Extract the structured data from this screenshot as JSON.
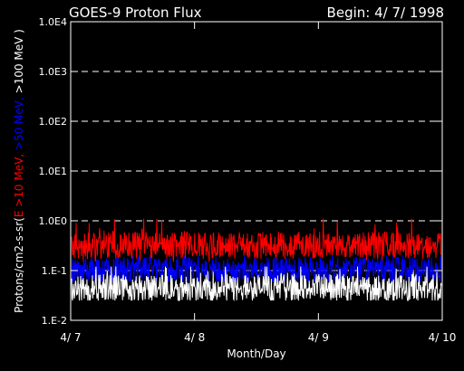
{
  "header": {
    "title": "GOES-9 Proton Flux",
    "begin": "Begin: 4/ 7/ 1998"
  },
  "chart_data": {
    "type": "line",
    "title": "GOES-9 Proton Flux",
    "xlabel": "Month/Day",
    "ylabel_parts": [
      {
        "text": "Protons/cm2-s-sr(",
        "color": "#ffffff"
      },
      {
        "text": "E >10 MeV,",
        "color": "#ff0000"
      },
      {
        "text": " >50 MeV,",
        "color": "#0000ff"
      },
      {
        "text": " >100 MeV )",
        "color": "#ffffff"
      }
    ],
    "y_scale": "log",
    "ylim": [
      0.01,
      10000
    ],
    "y_ticks": [
      {
        "value": 10000,
        "label": "1.0E4"
      },
      {
        "value": 1000,
        "label": "1.0E3"
      },
      {
        "value": 100,
        "label": "1.0E2"
      },
      {
        "value": 10,
        "label": "1.0E1"
      },
      {
        "value": 1,
        "label": "1.0E0"
      },
      {
        "value": 0.1,
        "label": "1.E-1"
      },
      {
        "value": 0.01,
        "label": "1.E-2"
      }
    ],
    "xlim": [
      "1998-04-07",
      "1998-04-10"
    ],
    "x_ticks": [
      {
        "value": "1998-04-07",
        "label": "4/ 7"
      },
      {
        "value": "1998-04-08",
        "label": "4/ 8"
      },
      {
        "value": "1998-04-09",
        "label": "4/ 9"
      },
      {
        "value": "1998-04-10",
        "label": "4/ 10"
      }
    ],
    "grid": "dashed horizontal at decades",
    "series": [
      {
        "color": "#ff0000",
        "baseline": 0.32,
        "fluctuation_max": 1.1,
        "fluctuation_min": 0.15
      },
      {
        "color": "#0000ff",
        "baseline": 0.1,
        "fluctuation_max": 0.2,
        "fluctuation_min": 0.06
      },
      {
        "color": "#ffffff",
        "baseline": 0.045,
        "fluctuation_max": 0.12,
        "fluctuation_min": 0.025
      }
    ]
  }
}
